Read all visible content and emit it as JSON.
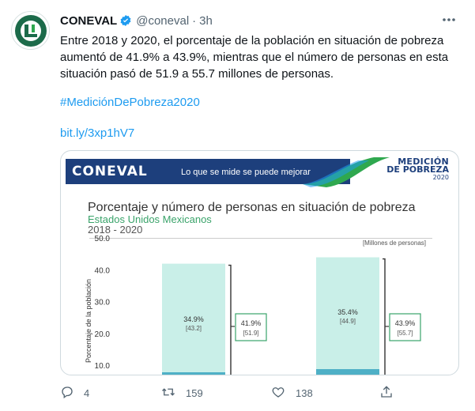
{
  "tweet": {
    "author_name": "CONEVAL",
    "handle": "@coneval",
    "separator": "·",
    "time": "3h",
    "text": "Entre 2018 y 2020, el porcentaje de la población en situación de pobreza aumentó de 41.9% a 43.9%, mientras que el número de personas en esta situación pasó de 51.9 a 55.7 millones de personas.",
    "hashtag": "#MediciónDePobreza2020",
    "link": "bit.ly/3xp1hV7"
  },
  "card": {
    "banner_logo": "CONEVAL",
    "banner_tagline": "Lo que se mide se puede mejorar",
    "medicion_line1": "MEDICIÓN",
    "medicion_line2": "DE POBREZA",
    "medicion_year": "2020",
    "chart_title": "Porcentaje y número de personas en situación de pobreza",
    "chart_subtitle": "Estados Unidos Mexicanos",
    "chart_years": "2018 - 2020"
  },
  "chart_data": {
    "type": "bar",
    "ylabel": "Porcentaje de la población",
    "units_note": "[Millones de personas]",
    "ylim": [
      0,
      50
    ],
    "yticks": [
      "50.0",
      "40.0",
      "30.0",
      "20.0",
      "10.0"
    ],
    "ytick_values": [
      50,
      40,
      30,
      20,
      10
    ],
    "bars": [
      {
        "stack_total": 41.9,
        "segment_label_pct": "34.9%",
        "segment_label_people": "[43.2]",
        "total_label_pct": "41.9%",
        "total_label_people": "[51.9]"
      },
      {
        "stack_total": 43.9,
        "segment_label_pct": "35.4%",
        "segment_label_people": "[44.9]",
        "total_label_pct": "43.9%",
        "total_label_people": "[55.7]"
      }
    ]
  },
  "actions": {
    "reply_count": "4",
    "retweet_count": "159",
    "like_count": "138"
  },
  "colors": {
    "link": "#1d9bf0",
    "bar_fill": "#c9efe8",
    "bar_base": "#4fb0c6",
    "label_border": "#3aa36a",
    "banner_blue": "#1d3f7c"
  }
}
